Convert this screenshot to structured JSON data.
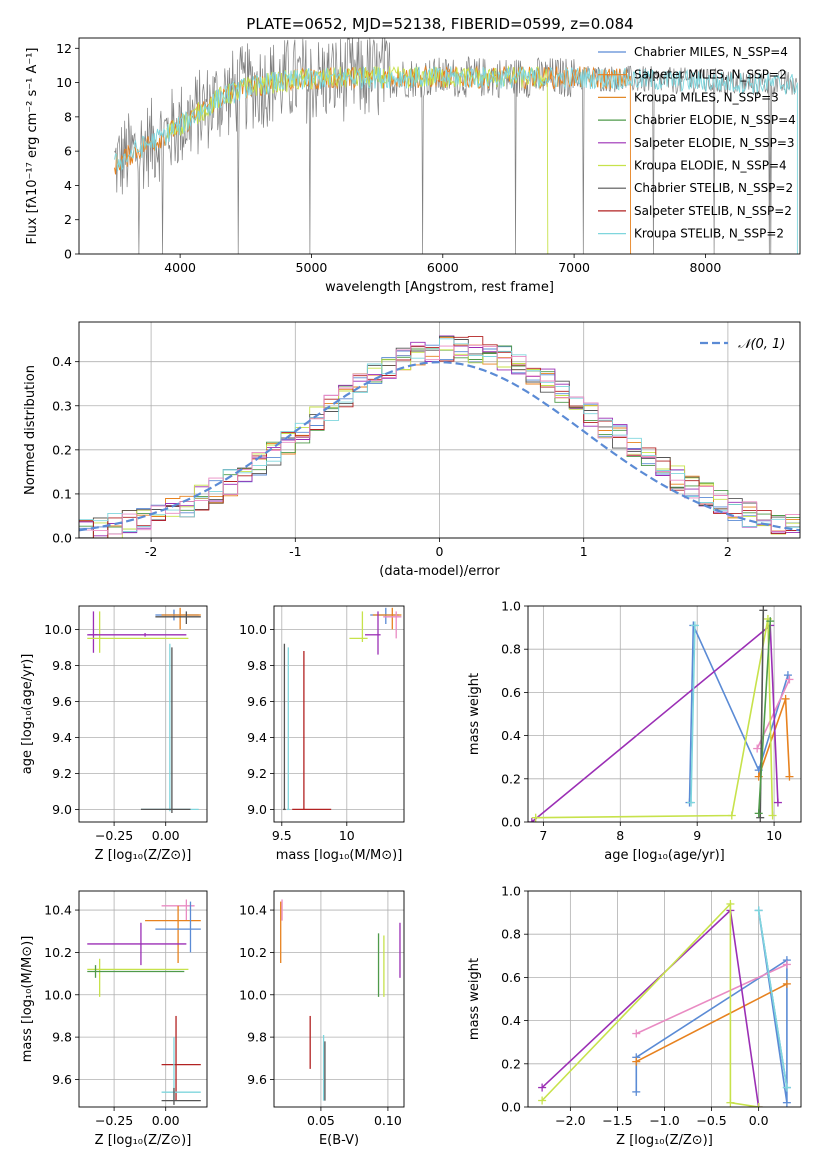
{
  "figure": {
    "title": "PLATE=0652, MJD=52138, FIBERID=0599, z=0.084",
    "colors": {
      "chabrier_miles": "#5b8bd5",
      "salpeter_miles": "#e7821f",
      "kroupa_miles": "#e38a2a",
      "chabrier_elodie": "#4f9a4a",
      "salpeter_elodie": "#9b2fb5",
      "kroupa_elodie": "#c7e24b",
      "chabrier_stelib": "#555555",
      "salpeter_stelib": "#b22222",
      "kroupa_stelib": "#7fd6dd",
      "spectrum_data": "#808080",
      "pink": "#e98bc3",
      "normal_curve": "#5b8bd5"
    }
  },
  "chart_data": [
    {
      "id": "spectrum",
      "type": "line",
      "xlabel": "wavelength [Angstrom, rest frame]",
      "ylabel": "Flux [fλ10⁻¹⁷ erg cm⁻² s⁻¹ A⁻¹]",
      "xlim": [
        3230,
        8720
      ],
      "ylim": [
        0,
        12.6
      ],
      "xticks": [
        4000,
        5000,
        6000,
        7000,
        8000
      ],
      "yticks": [
        0,
        2,
        4,
        6,
        8,
        10,
        12
      ],
      "grid": false,
      "legend_position": "right",
      "series": [
        {
          "name": "Chabrier MILES, N_SSP=4",
          "color": "#5b8bd5"
        },
        {
          "name": "Salpeter MILES, N_SSP=2",
          "color": "#e7821f"
        },
        {
          "name": "Kroupa MILES, N_SSP=3",
          "color": "#e38a2a"
        },
        {
          "name": "Chabrier ELODIE, N_SSP=4",
          "color": "#4f9a4a"
        },
        {
          "name": "Salpeter ELODIE, N_SSP=3",
          "color": "#9b2fb5"
        },
        {
          "name": "Kroupa ELODIE, N_SSP=4",
          "color": "#c7e24b"
        },
        {
          "name": "Chabrier STELIB, N_SSP=2",
          "color": "#555555"
        },
        {
          "name": "Salpeter STELIB, N_SSP=2",
          "color": "#b22222"
        },
        {
          "name": "Kroupa STELIB, N_SSP=2",
          "color": "#7fd6dd"
        }
      ],
      "continuum": {
        "x": [
          3500,
          3700,
          3900,
          4100,
          4300,
          4500,
          4700,
          5000,
          5300,
          5600,
          6000,
          6500,
          7000,
          7400,
          7800,
          8200,
          8700
        ],
        "y": [
          5.2,
          6.2,
          7.0,
          8.0,
          9.1,
          9.7,
          10.0,
          10.2,
          10.3,
          10.3,
          10.3,
          10.3,
          10.3,
          10.2,
          10.1,
          10.0,
          9.9
        ]
      }
    },
    {
      "id": "residuals",
      "type": "step",
      "xlabel": "(data-model)/error",
      "ylabel": "Normed distribution",
      "xlim": [
        -2.5,
        2.5
      ],
      "ylim": [
        0,
        0.49
      ],
      "xticks": [
        -2,
        -1,
        0,
        1,
        2
      ],
      "yticks": [
        0.0,
        0.1,
        0.2,
        0.3,
        0.4
      ],
      "grid": true,
      "legend_position": "top-right",
      "normal_label": "𝒩(0, 1)",
      "bin_width": 0.1
    },
    {
      "id": "age_vs_Z",
      "type": "errorbar",
      "xlabel": "Z [log₁₀(Z/Z⊙)]",
      "ylabel": "age  [log₁₀(age/yr)]",
      "xlim": [
        -0.42,
        0.2
      ],
      "ylim": [
        8.93,
        10.13
      ],
      "xticks": [
        -0.25,
        0.0
      ],
      "xtick_labels": [
        "−0.25",
        "0.00"
      ],
      "yticks": [
        9.0,
        9.2,
        9.4,
        9.6,
        9.8,
        10.0
      ],
      "grid": true,
      "points": [
        {
          "x": 0.04,
          "y": 10.08,
          "x0": -0.05,
          "x1": 0.16,
          "y0": 10.05,
          "y1": 10.11,
          "color": "#5b8bd5"
        },
        {
          "x": 0.07,
          "y": 10.08,
          "x0": -0.02,
          "x1": 0.17,
          "y0": 10.0,
          "y1": 10.12,
          "color": "#e7821f"
        },
        {
          "x": 0.1,
          "y": 10.07,
          "x0": -0.05,
          "x1": 0.17,
          "y0": 10.03,
          "y1": 10.1,
          "color": "#555555"
        },
        {
          "x": -0.35,
          "y": 9.97,
          "x0": -0.37,
          "x1": -0.33,
          "y0": 9.87,
          "y1": 10.1,
          "color": "#9b2fb5"
        },
        {
          "x": -0.32,
          "y": 9.95,
          "x0": -0.38,
          "x1": 0.11,
          "y0": 9.87,
          "y1": 10.1,
          "color": "#c7e24b"
        },
        {
          "x": -0.1,
          "y": 9.97,
          "x0": -0.38,
          "x1": 0.1,
          "y0": 9.96,
          "y1": 9.98,
          "color": "#9b2fb5"
        },
        {
          "x": 0.02,
          "y": 9.0,
          "x0": -0.12,
          "x1": 0.16,
          "y0": 8.99,
          "y1": 9.92,
          "color": "#7fd6dd"
        },
        {
          "x": 0.03,
          "y": 9.0,
          "x0": -0.12,
          "x1": 0.12,
          "y0": 8.98,
          "y1": 9.9,
          "color": "#555555"
        }
      ]
    },
    {
      "id": "age_vs_mass",
      "type": "errorbar",
      "xlabel": "mass [log₁₀(M/M⊙)]",
      "xlim": [
        9.44,
        10.44
      ],
      "ylim": [
        8.93,
        10.13
      ],
      "xticks": [
        9.5,
        10.0
      ],
      "yticks": [
        9.0,
        9.2,
        9.4,
        9.6,
        9.8,
        10.0
      ],
      "grid": true,
      "points": [
        {
          "x": 10.3,
          "y": 10.08,
          "x0": 10.18,
          "x1": 10.4,
          "y0": 10.03,
          "y1": 10.12,
          "color": "#5b8bd5"
        },
        {
          "x": 10.35,
          "y": 10.08,
          "x0": 10.2,
          "x1": 10.42,
          "y0": 10.0,
          "y1": 10.12,
          "color": "#e7821f"
        },
        {
          "x": 10.38,
          "y": 10.07,
          "x0": 10.28,
          "x1": 10.42,
          "y0": 9.95,
          "y1": 10.1,
          "color": "#e98bc3"
        },
        {
          "x": 10.24,
          "y": 9.97,
          "x0": 10.14,
          "x1": 10.26,
          "y0": 9.86,
          "y1": 10.1,
          "color": "#9b2fb5"
        },
        {
          "x": 10.12,
          "y": 9.95,
          "x0": 10.02,
          "x1": 10.16,
          "y0": 9.93,
          "y1": 10.1,
          "color": "#c7e24b"
        },
        {
          "x": 9.55,
          "y": 9.0,
          "x0": 9.54,
          "x1": 9.56,
          "y0": 9.0,
          "y1": 9.9,
          "color": "#7fd6dd"
        },
        {
          "x": 9.52,
          "y": 9.0,
          "x0": 9.51,
          "x1": 9.53,
          "y0": 9.0,
          "y1": 9.92,
          "color": "#555555"
        },
        {
          "x": 9.67,
          "y": 9.0,
          "x0": 9.58,
          "x1": 9.88,
          "y0": 9.0,
          "y1": 9.88,
          "color": "#b22222"
        }
      ]
    },
    {
      "id": "weight_vs_age",
      "type": "line",
      "xlabel": "age  [log₁₀(age/yr)]",
      "ylabel": "mass weight",
      "xlim": [
        6.8,
        10.35
      ],
      "ylim": [
        0,
        1.0
      ],
      "xticks": [
        7,
        8,
        9,
        10
      ],
      "yticks": [
        0.0,
        0.2,
        0.4,
        0.6,
        0.8,
        1.0
      ],
      "grid": true,
      "series": [
        {
          "color": "#5b8bd5",
          "x": [
            8.9,
            8.95,
            9.8,
            10.18
          ],
          "y": [
            0.09,
            0.91,
            0.24,
            0.68
          ]
        },
        {
          "color": "#e7821f",
          "x": [
            9.8,
            10.15,
            10.2
          ],
          "y": [
            0.21,
            0.57,
            0.21
          ]
        },
        {
          "color": "#e98bc3",
          "x": [
            9.78,
            10.2
          ],
          "y": [
            0.34,
            0.66
          ]
        },
        {
          "color": "#9b2fb5",
          "x": [
            6.85,
            9.95,
            10.05
          ],
          "y": [
            0.0,
            0.91,
            0.09
          ]
        },
        {
          "color": "#c7e24b",
          "x": [
            6.9,
            9.45,
            9.92,
            9.98
          ],
          "y": [
            0.02,
            0.03,
            0.94,
            0.03
          ]
        },
        {
          "color": "#7fd6dd",
          "x": [
            8.92,
            8.97
          ],
          "y": [
            0.09,
            0.91
          ]
        },
        {
          "color": "#555555",
          "x": [
            9.82,
            9.86
          ],
          "y": [
            0.02,
            0.98
          ]
        },
        {
          "color": "#4f9a4a",
          "x": [
            9.8,
            9.95
          ],
          "y": [
            0.04,
            0.93
          ]
        }
      ]
    },
    {
      "id": "mass_vs_Z",
      "type": "errorbar",
      "xlabel": "Z [log₁₀(Z/Z⊙)]",
      "ylabel": "mass [log₁₀(M/M⊙)]",
      "xlim": [
        -0.42,
        0.2
      ],
      "ylim": [
        9.47,
        10.49
      ],
      "xticks": [
        -0.25,
        0.0
      ],
      "xtick_labels": [
        "−0.25",
        "0.00"
      ],
      "yticks": [
        9.6,
        9.8,
        10.0,
        10.2,
        10.4
      ],
      "grid": true,
      "points": [
        {
          "x": 0.1,
          "y": 10.42,
          "x0": -0.02,
          "x1": 0.14,
          "y0": 10.35,
          "y1": 10.45,
          "color": "#e98bc3"
        },
        {
          "x": 0.06,
          "y": 10.35,
          "x0": -0.1,
          "x1": 0.17,
          "y0": 10.15,
          "y1": 10.42,
          "color": "#e7821f"
        },
        {
          "x": 0.12,
          "y": 10.31,
          "x0": -0.05,
          "x1": 0.17,
          "y0": 10.2,
          "y1": 10.44,
          "color": "#5b8bd5"
        },
        {
          "x": -0.12,
          "y": 10.24,
          "x0": -0.38,
          "x1": 0.1,
          "y0": 10.14,
          "y1": 10.34,
          "color": "#9b2fb5"
        },
        {
          "x": -0.32,
          "y": 10.12,
          "x0": -0.38,
          "x1": 0.11,
          "y0": 9.99,
          "y1": 10.17,
          "color": "#c7e24b"
        },
        {
          "x": -0.34,
          "y": 10.11,
          "x0": -0.38,
          "x1": 0.09,
          "y0": 10.08,
          "y1": 10.14,
          "color": "#4f9a4a"
        },
        {
          "x": 0.05,
          "y": 9.67,
          "x0": -0.02,
          "x1": 0.17,
          "y0": 9.5,
          "y1": 9.9,
          "color": "#b22222"
        },
        {
          "x": 0.04,
          "y": 9.54,
          "x0": -0.02,
          "x1": 0.17,
          "y0": 9.5,
          "y1": 9.8,
          "color": "#7fd6dd"
        },
        {
          "x": 0.04,
          "y": 9.5,
          "x0": -0.02,
          "x1": 0.17,
          "y0": 9.48,
          "y1": 9.56,
          "color": "#555555"
        }
      ]
    },
    {
      "id": "mass_vs_ebv",
      "type": "errorbar",
      "xlabel": "E(B-V)",
      "xlim": [
        0.015,
        0.112
      ],
      "ylim": [
        9.47,
        10.49
      ],
      "xticks": [
        0.05,
        0.1
      ],
      "xtick_labels": [
        "0.05",
        "0.10"
      ],
      "yticks": [
        9.6,
        9.8,
        10.0,
        10.2,
        10.4
      ],
      "grid": true,
      "points": [
        {
          "x": 0.02,
          "y": 10.3,
          "y0": 10.15,
          "y1": 10.44,
          "color": "#e7821f"
        },
        {
          "x": 0.021,
          "y": 10.4,
          "y0": 10.35,
          "y1": 10.45,
          "color": "#e98bc3"
        },
        {
          "x": 0.109,
          "y": 10.2,
          "y0": 10.08,
          "y1": 10.34,
          "color": "#9b2fb5"
        },
        {
          "x": 0.093,
          "y": 10.14,
          "y0": 9.99,
          "y1": 10.29,
          "color": "#4f9a4a"
        },
        {
          "x": 0.097,
          "y": 10.12,
          "y0": 9.99,
          "y1": 10.28,
          "color": "#c7e24b"
        },
        {
          "x": 0.042,
          "y": 9.78,
          "y0": 9.65,
          "y1": 9.9,
          "color": "#b22222"
        },
        {
          "x": 0.052,
          "y": 9.65,
          "y0": 9.5,
          "y1": 9.81,
          "color": "#7fd6dd"
        },
        {
          "x": 0.053,
          "y": 9.62,
          "y0": 9.5,
          "y1": 9.78,
          "color": "#555555"
        }
      ]
    },
    {
      "id": "weight_vs_Z",
      "type": "line",
      "xlabel": "Z [log₁₀(Z/Z⊙)]",
      "ylabel": "mass weight",
      "xlim": [
        -2.45,
        0.45
      ],
      "ylim": [
        0,
        1.0
      ],
      "xticks": [
        -2.0,
        -1.5,
        -1.0,
        -0.5,
        0.0
      ],
      "xtick_labels": [
        "−2.0",
        "−1.5",
        "−1.0",
        "−0.5",
        "0.0"
      ],
      "yticks": [
        0.0,
        0.2,
        0.4,
        0.6,
        0.8,
        1.0
      ],
      "grid": true,
      "series": [
        {
          "color": "#5b8bd5",
          "x": [
            -1.3,
            -1.3,
            0.3,
            0.3,
            0.0,
            0.3
          ],
          "y": [
            0.07,
            0.23,
            0.68,
            0.02,
            0.91,
            0.09
          ]
        },
        {
          "color": "#e7821f",
          "x": [
            -1.3,
            0.3
          ],
          "y": [
            0.21,
            0.57
          ]
        },
        {
          "color": "#e98bc3",
          "x": [
            -1.3,
            0.3
          ],
          "y": [
            0.34,
            0.66
          ]
        },
        {
          "color": "#9b2fb5",
          "x": [
            -2.3,
            -0.3,
            -0.0
          ],
          "y": [
            0.09,
            0.91,
            0.0
          ]
        },
        {
          "color": "#c7e24b",
          "x": [
            -2.3,
            -0.3,
            -0.3,
            0.0
          ],
          "y": [
            0.03,
            0.94,
            0.02,
            0.0
          ]
        },
        {
          "color": "#7fd6dd",
          "x": [
            0.0,
            0.3
          ],
          "y": [
            0.91,
            0.09
          ]
        }
      ]
    }
  ]
}
